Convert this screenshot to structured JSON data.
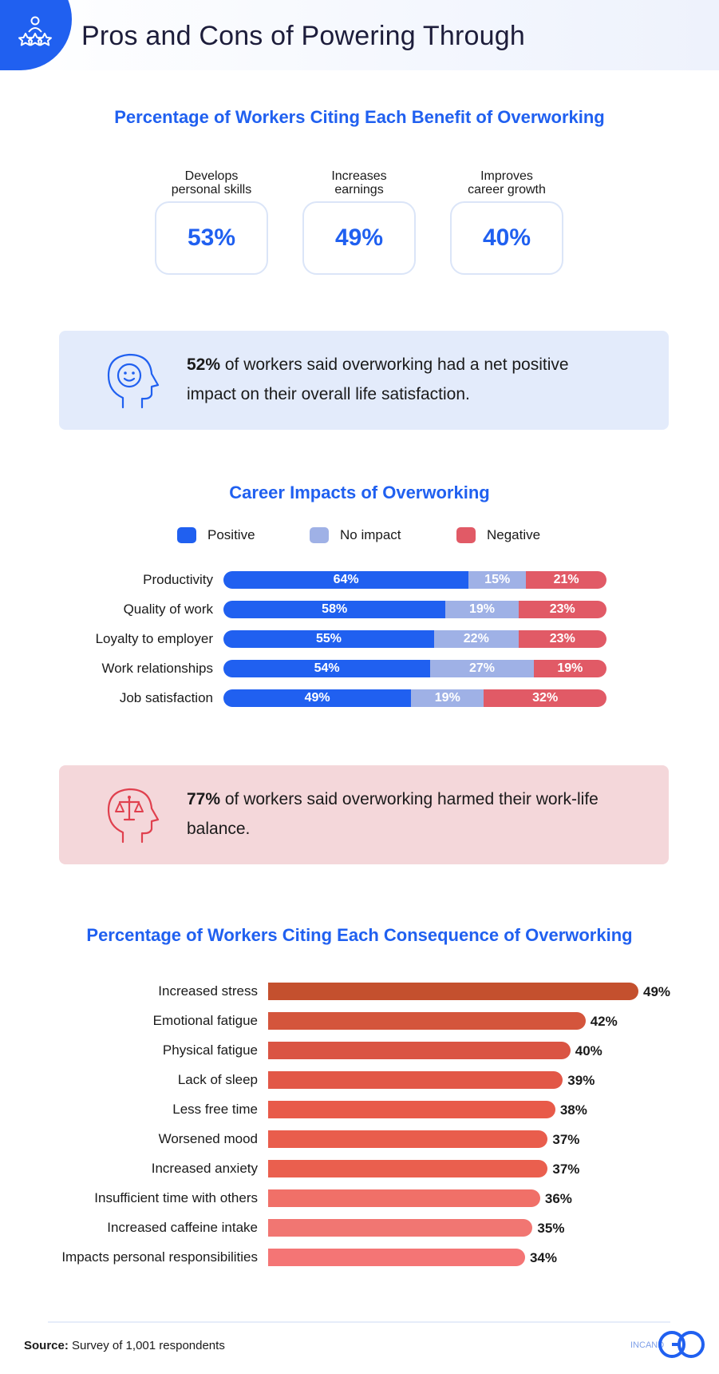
{
  "header": {
    "title": "Pros and Cons of Powering Through"
  },
  "benefits": {
    "title": "Percentage of Workers Citing Each Benefit of Overworking",
    "items": [
      {
        "label_line1": "Develops",
        "label_line2": "personal skills",
        "value": "53%"
      },
      {
        "label_line1": "Increases",
        "label_line2": "earnings",
        "value": "49%"
      },
      {
        "label_line1": "Improves",
        "label_line2": "career growth",
        "value": "40%"
      }
    ]
  },
  "callout_positive": {
    "highlight": "52%",
    "text": " of workers said overworking had a net positive impact on their overall life satisfaction."
  },
  "career": {
    "title": "Career Impacts of Overworking",
    "legend": [
      "Positive",
      "No impact",
      "Negative"
    ],
    "colors": {
      "positive": "#2060f0",
      "neutral": "#9fb1e6",
      "negative": "#e15a66"
    }
  },
  "callout_negative": {
    "highlight": "77%",
    "text": " of workers said overworking harmed their work-life balance."
  },
  "consequences": {
    "title": "Percentage of Workers Citing Each Consequence of Overworking"
  },
  "chart_data": [
    {
      "type": "bar",
      "stacked": true,
      "orientation": "horizontal",
      "title": "Career Impacts of Overworking",
      "categories": [
        "Productivity",
        "Quality of work",
        "Loyalty to employer",
        "Work relationships",
        "Job satisfaction"
      ],
      "series": [
        {
          "name": "Positive",
          "values": [
            64,
            58,
            55,
            54,
            49
          ]
        },
        {
          "name": "No impact",
          "values": [
            15,
            19,
            22,
            27,
            19
          ]
        },
        {
          "name": "Negative",
          "values": [
            21,
            23,
            23,
            19,
            32
          ]
        }
      ],
      "xlim": [
        0,
        100
      ],
      "legend": "top"
    },
    {
      "type": "bar",
      "orientation": "horizontal",
      "title": "Percentage of Workers Citing Each Consequence of Overworking",
      "categories": [
        "Increased stress",
        "Emotional fatigue",
        "Physical fatigue",
        "Lack of sleep",
        "Less free time",
        "Worsened mood",
        "Increased anxiety",
        "Insufficient time with others",
        "Increased caffeine intake",
        "Impacts personal responsibilities"
      ],
      "values": [
        49,
        42,
        40,
        39,
        38,
        37,
        37,
        36,
        35,
        34
      ],
      "colors": [
        "#c4502e",
        "#d4553c",
        "#da5443",
        "#e25747",
        "#e85a49",
        "#e95d4c",
        "#ea5f4e",
        "#f07068",
        "#f17672",
        "#f47575"
      ]
    }
  ],
  "footer": {
    "source_label": "Source:",
    "source_text": " Survey of 1,001 respondents",
    "logo_text": "INCAND"
  }
}
